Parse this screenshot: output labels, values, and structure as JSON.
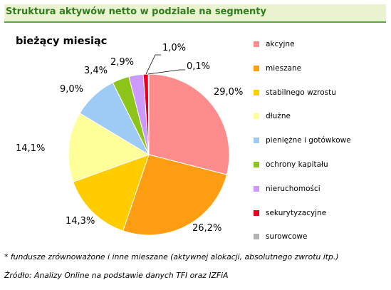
{
  "header": {
    "title": "Struktura aktywów netto w podziale na segmenty"
  },
  "chart_data": {
    "type": "pie",
    "subtitle": "bieżący miesiąc",
    "categories": [
      "akcyjne",
      "mieszane",
      "stabilnego wzrostu",
      "dłużne",
      "pieniężne i gotówkowe",
      "ochrony kapitału",
      "nieruchomości",
      "sekurytyzacyjne",
      "surowcowe"
    ],
    "values": [
      29.0,
      26.2,
      14.3,
      14.1,
      9.0,
      3.4,
      2.9,
      1.0,
      0.1
    ],
    "value_labels": [
      "29,0%",
      "26,2%",
      "14,3%",
      "14,1%",
      "9,0%",
      "3,4%",
      "2,9%",
      "1,0%",
      "0,1%"
    ],
    "colors": [
      "#ff8c8c",
      "#ff9d12",
      "#ffcc00",
      "#ffff99",
      "#9dcbf5",
      "#8cc41a",
      "#cc99ff",
      "#e8001f",
      "#b2b2b2"
    ],
    "legend_position": "right"
  },
  "footnote": "* fundusze zrównoważone i inne mieszane (aktywnej alokacji, absolutnego zwrotu itp.)",
  "source": "Źródło: Analizy Online na podstawie danych TFI oraz IZFiA"
}
